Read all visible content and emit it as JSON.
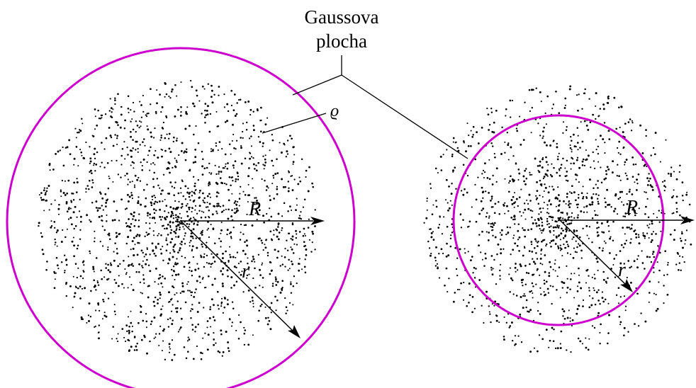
{
  "labels": {
    "gauss_line1": "Gaussova",
    "gauss_line2": "plocha",
    "density": "ϱ",
    "radius_outer_left": "R",
    "radius_inner_left": "r",
    "radius_outer_right": "R",
    "radius_inner_right": "r"
  },
  "colors": {
    "gaussian_surface": "#cc00cc",
    "charge_dots": "#000000",
    "background": "#ffffff"
  },
  "figures": [
    {
      "name": "left-sphere",
      "gaussian_surface": "outside-charge",
      "radius_ratio_r_to_R": 1.22
    },
    {
      "name": "right-sphere",
      "gaussian_surface": "inside-charge",
      "radius_ratio_r_to_R": 0.8
    }
  ]
}
